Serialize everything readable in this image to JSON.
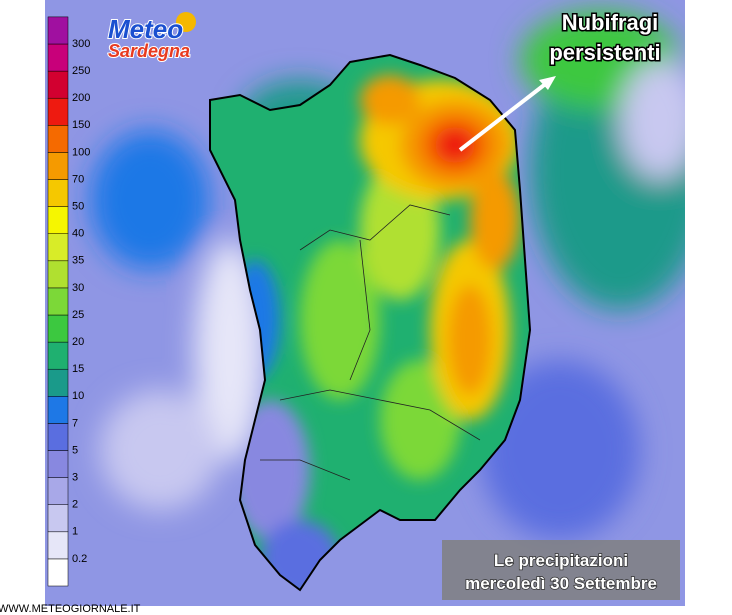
{
  "logo": {
    "title": "Meteo",
    "subtitle": "Sardegna"
  },
  "annotation": {
    "line1": "Nubifragi",
    "line2": "persistenti"
  },
  "caption": {
    "line1": "Le precipitazioni",
    "line2": "mercoledì 30 Settembre"
  },
  "footer": "WWW.METEOGIORNALE.IT",
  "legend": {
    "levels": [
      0.2,
      1,
      2,
      3,
      5,
      7,
      10,
      15,
      20,
      25,
      30,
      35,
      40,
      50,
      70,
      100,
      150,
      200,
      250,
      300
    ],
    "colors": [
      "#ffffff",
      "#e6e6f8",
      "#c8c8f0",
      "#a8a8e8",
      "#8888e0",
      "#5a6ee0",
      "#1e78e6",
      "#1a9a8a",
      "#1fb070",
      "#3cc840",
      "#7cd838",
      "#b0e030",
      "#d8ec28",
      "#f6f600",
      "#f5c800",
      "#f59a00",
      "#f56a00",
      "#ee1a10",
      "#d20030",
      "#c8007a",
      "#a010a0"
    ]
  }
}
